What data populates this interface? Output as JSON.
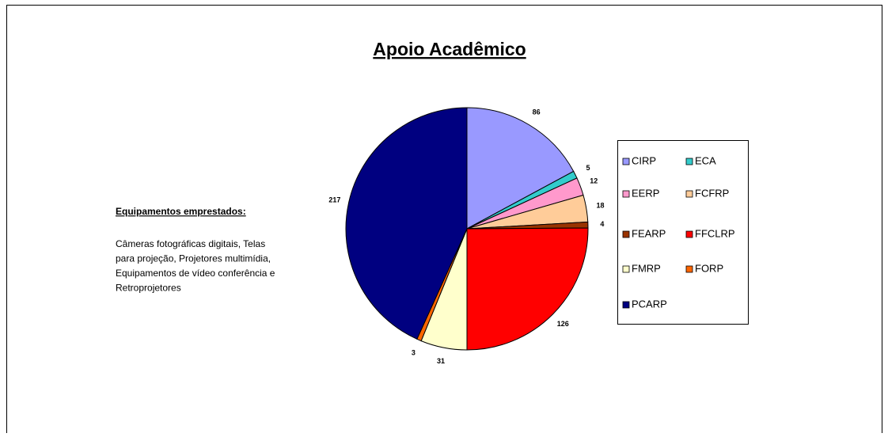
{
  "chart_data": {
    "type": "pie",
    "title": "Apoio Acadêmico",
    "categories": [
      "CIRP",
      "ECA",
      "EERP",
      "FCFRP",
      "FEARP",
      "FFCLRP",
      "FMRP",
      "FORP",
      "PCARP"
    ],
    "values": [
      86,
      5,
      12,
      18,
      4,
      126,
      31,
      3,
      217
    ],
    "colors": [
      "#9999ff",
      "#33cccc",
      "#ff99cc",
      "#ffcc99",
      "#993300",
      "#ff0000",
      "#ffffcc",
      "#ff6600",
      "#000080"
    ],
    "legend": "right",
    "annotation_title": "Equipamentos emprestados:",
    "annotation_lines": [
      "Câmeras fotográficas digitais, Telas",
      "para projeção, Projetores multimídia,",
      "Equipamentos de vídeo conferência e",
      "Retroprojetores"
    ]
  }
}
